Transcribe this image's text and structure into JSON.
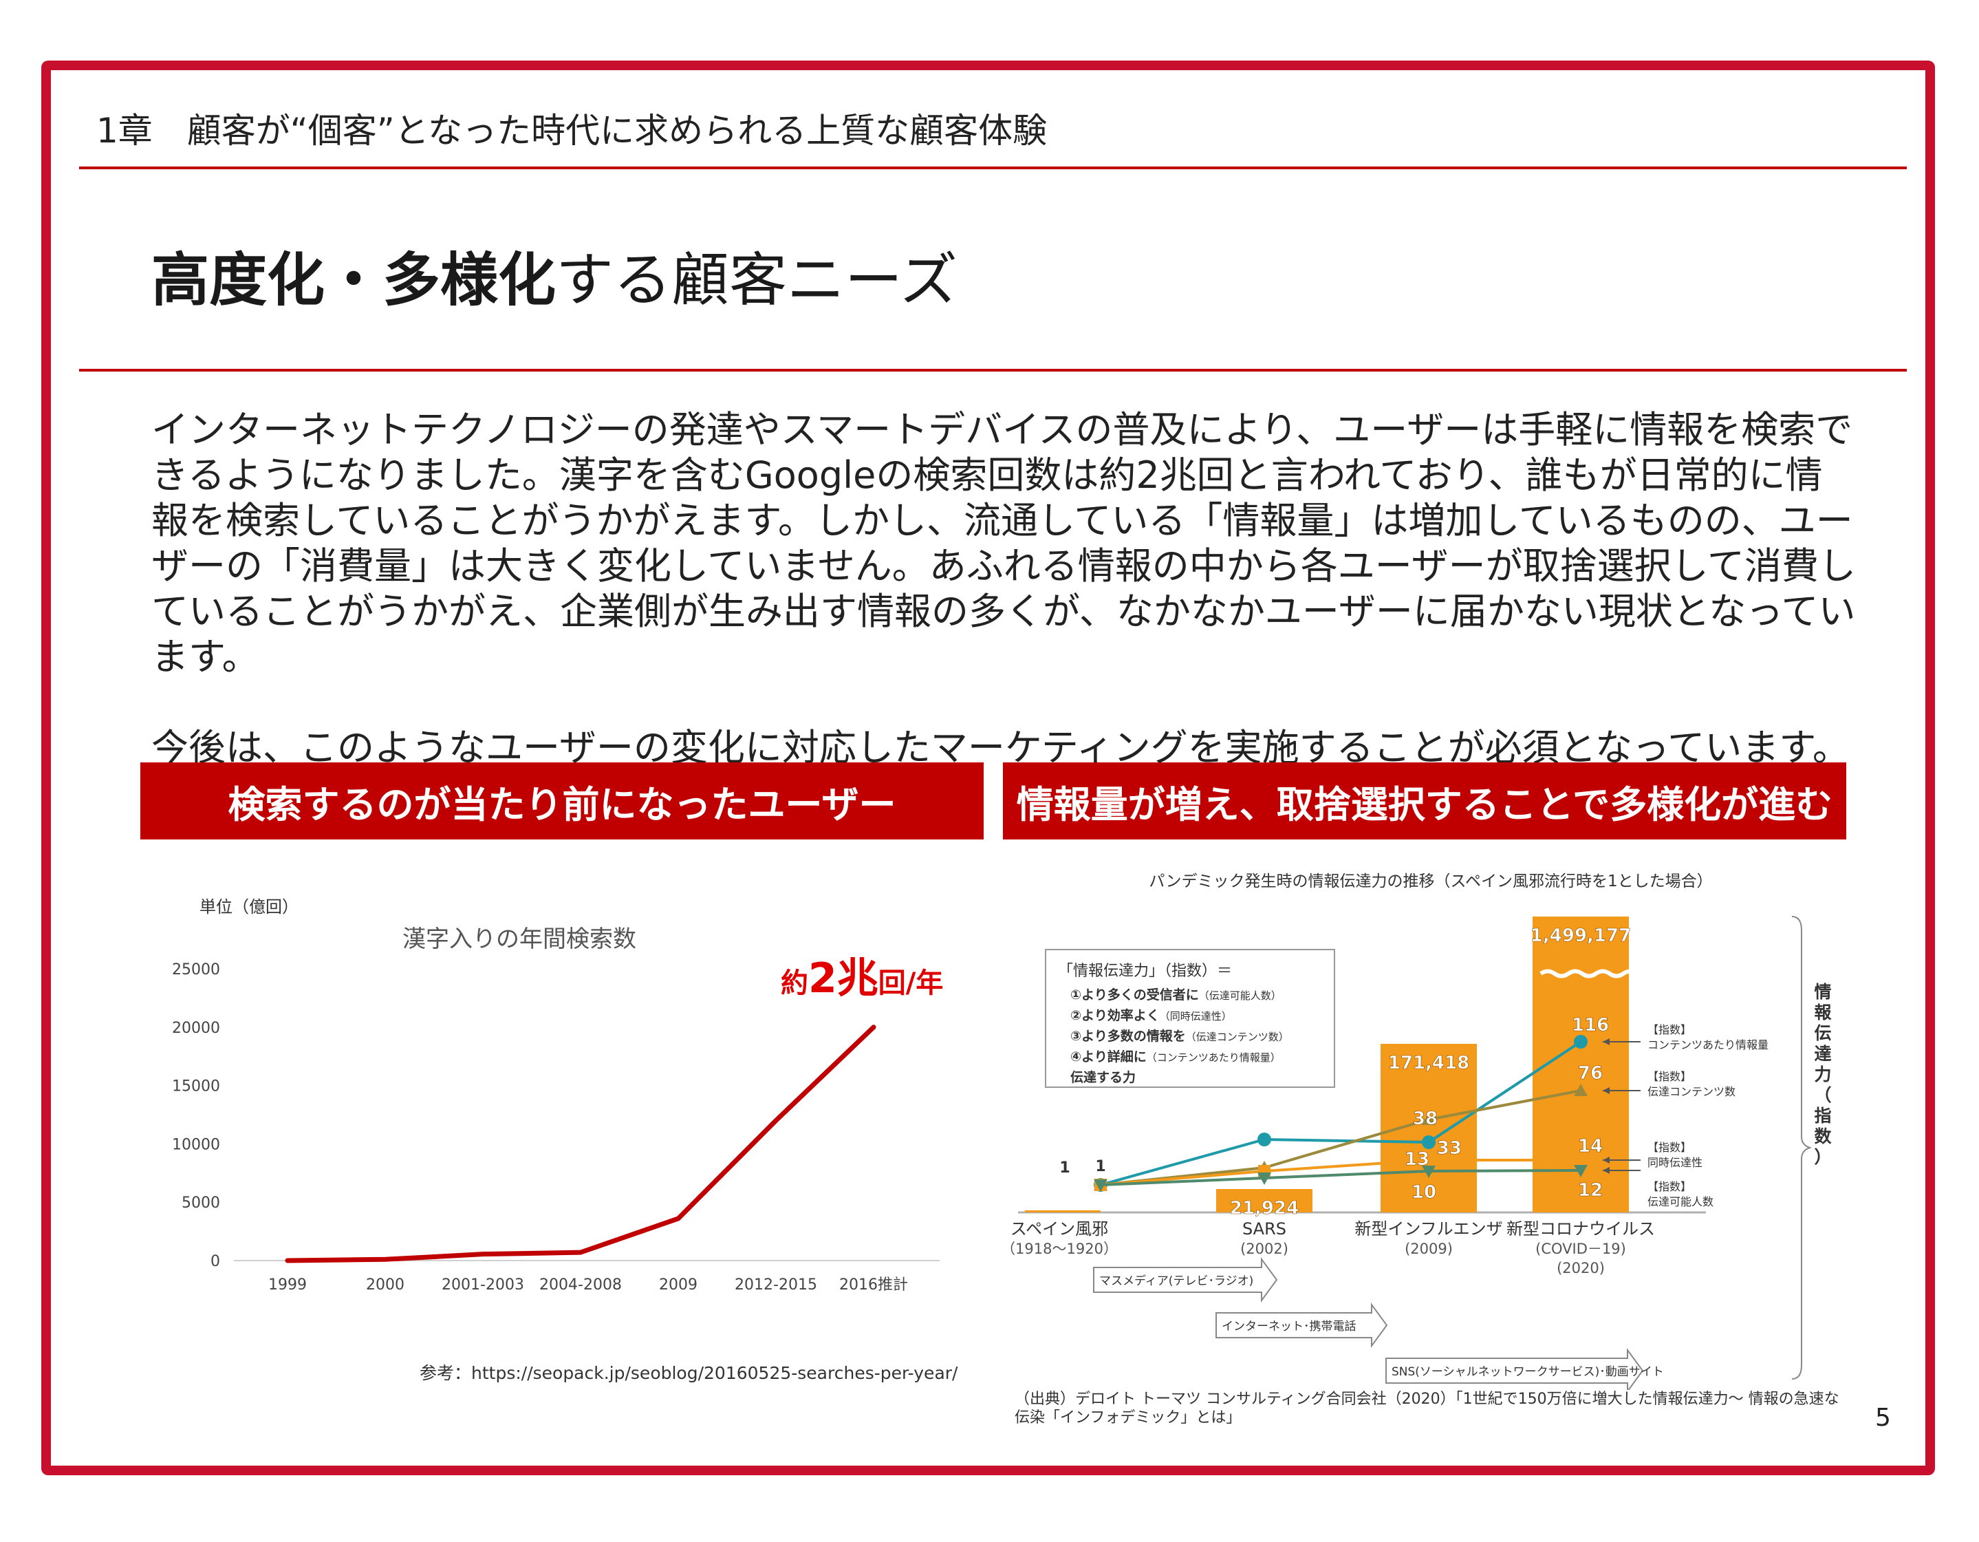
{
  "header": {
    "chapter": "1章　顧客が“個客”となった時代に求められる上質な顧客体験",
    "title_bold": "高度化・多様化",
    "title_rest": "する顧客ニーズ"
  },
  "body": {
    "paragraph1": "インターネットテクノロジーの発達やスマートデバイスの普及により、ユーザーは手軽に情報を検索できるようになりました。漢字を含むGoogleの検索回数は約2兆回と言われており、誰もが日常的に情報を検索していることがうかがえます。しかし、流通している「情報量」は増加しているものの、ユーザーの「消費量」は大きく変化していません。あふれる情報の中から各ユーザーが取捨選択して消費していることがうかがえ、企業側が生み出す情報の多くが、なかなかユーザーに届かない現状となっています。",
    "paragraph2": "今後は、このようなユーザーの変化に対応したマーケティングを実施することが必須となっています。"
  },
  "banners": {
    "left": "検索するのが当たり前になったユーザー",
    "right": "情報量が増え、取捨選択することで多様化が進む"
  },
  "colors": {
    "accent": "#c00000",
    "orange": "#f39a1b",
    "teal": "#1f9aa8",
    "olive": "#9b8a3c",
    "green": "#4f8a6c"
  },
  "chart_data": [
    {
      "type": "line",
      "title": "漢字入りの年間検索数",
      "unit_label": "単位（億回）",
      "callout_prefix": "約",
      "callout_num": "2兆",
      "callout_suffix": "回/年",
      "categories": [
        "1999",
        "2000",
        "2001-2003",
        "2004-2008",
        "2009",
        "2012-2015",
        "2016推計"
      ],
      "values": [
        0,
        100,
        550,
        700,
        3600,
        12000,
        20000
      ],
      "ylim": [
        0,
        25000
      ],
      "yticks": [
        "25000",
        "20000",
        "15000",
        "10000",
        "5000",
        "0"
      ],
      "grid": false,
      "reference": "参考：https://seopack.jp/seoblog/20160525-searches-per-year/"
    },
    {
      "type": "bar",
      "title": "パンデミック発生時の情報伝達力の推移（スペイン風邪流行時を1とした場合）",
      "categories": [
        {
          "name": "スペイン風邪",
          "period": "（1918～1920）"
        },
        {
          "name": "SARS",
          "period": "(2002)"
        },
        {
          "name": "新型インフルエンザ",
          "period": "(2009)"
        },
        {
          "name": "新型コロナウイルス",
          "period": "(COVID－19)",
          "period2": "(2020)"
        }
      ],
      "bar_values": [
        1,
        21924,
        171418,
        1499177
      ],
      "bar_labels": [
        "1",
        "21,924",
        "171,418",
        "1,499,177"
      ],
      "series": [
        {
          "name": "【指数】コンテンツあたり情報量",
          "values": [
            1,
            10,
            10.3,
            116
          ],
          "labels": [
            "",
            "",
            "",
            "116"
          ]
        },
        {
          "name": "【指数】伝達コンテンツ数",
          "values": [
            1,
            5,
            38,
            76
          ],
          "labels": [
            "",
            "",
            "38",
            "76"
          ]
        },
        {
          "name": "【指数】同時伝達性",
          "values": [
            1,
            8,
            13,
            14
          ],
          "labels": [
            "",
            "",
            "13",
            "14"
          ]
        },
        {
          "name": "【指数】伝達可能人数",
          "values": [
            1,
            3,
            10,
            12
          ],
          "labels": [
            "",
            "",
            "10",
            "12"
          ]
        }
      ],
      "extra_labels": [
        "33"
      ],
      "series_label_prefix": "【指数】",
      "series_label_names": [
        "コンテンツあたり情報量",
        "伝達コンテンツ数",
        "同時伝達性",
        "伝達可能人数"
      ],
      "right_label": "情報伝達力（指数）",
      "legend_box": {
        "title": "「情報伝達力」（指数）＝",
        "lines": [
          {
            "main": "①より多くの受信者に",
            "note": "（伝達可能人数）"
          },
          {
            "main": "②より効率よく",
            "note": "（同時伝達性）"
          },
          {
            "main": "③より多数の情報を",
            "note": "（伝達コンテンツ数）"
          },
          {
            "main": "④より詳細に",
            "note": "（コンテンツあたり情報量）"
          },
          {
            "main": "伝達する力",
            "note": ""
          }
        ]
      },
      "arrows": [
        "マスメディア(テレビ･ラジオ)",
        "インターネット･携帯電話",
        "SNS(ソーシャルネットワークサービス)･動画サイト"
      ],
      "source": "（出典）デロイト トーマツ コンサルティング合同会社（2020）「1世紀で150万倍に増大した情報伝達力～ 情報の急速な伝染「インフォデミック」とは」"
    }
  ],
  "page_number": "5"
}
